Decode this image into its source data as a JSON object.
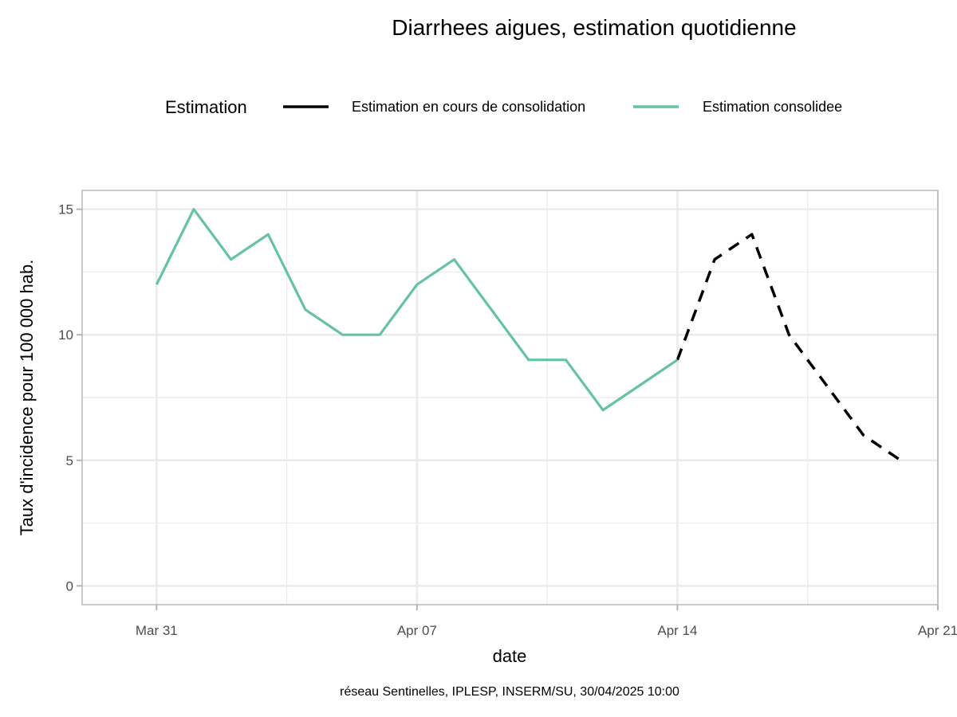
{
  "chart_data": {
    "type": "line",
    "title": "Diarrhees aigues, estimation quotidienne",
    "xlabel": "date",
    "ylabel": "Taux d'incidence pour 100 000 hab.",
    "caption": "réseau Sentinelles, IPLESP, INSERM/SU, 30/04/2025 10:00",
    "legend": {
      "title": "Estimation",
      "position": "top"
    },
    "xlim": [
      "2025-03-29",
      "2025-04-21"
    ],
    "ylim": [
      -0.75,
      15.75
    ],
    "x_ticks": [
      {
        "date": "2025-03-31",
        "label": "Mar 31"
      },
      {
        "date": "2025-04-07",
        "label": "Apr 07"
      },
      {
        "date": "2025-04-14",
        "label": "Apr 14"
      },
      {
        "date": "2025-04-21",
        "label": "Apr 21"
      }
    ],
    "y_ticks": [
      0,
      5,
      10,
      15
    ],
    "grid": true,
    "series": [
      {
        "name": "Estimation en cours de consolidation",
        "color": "#000000",
        "dash": true,
        "x": [
          "2025-04-14",
          "2025-04-15",
          "2025-04-16",
          "2025-04-17",
          "2025-04-18",
          "2025-04-19",
          "2025-04-20"
        ],
        "values": [
          9,
          13,
          14,
          10,
          8,
          6,
          5
        ]
      },
      {
        "name": "Estimation consolidee",
        "color": "#66c2a5",
        "dash": false,
        "x": [
          "2025-03-31",
          "2025-04-01",
          "2025-04-02",
          "2025-04-03",
          "2025-04-04",
          "2025-04-05",
          "2025-04-06",
          "2025-04-07",
          "2025-04-08",
          "2025-04-09",
          "2025-04-10",
          "2025-04-11",
          "2025-04-12",
          "2025-04-13",
          "2025-04-14"
        ],
        "values": [
          12,
          15,
          13,
          14,
          11,
          10,
          10,
          12,
          13,
          11,
          9,
          9,
          7,
          8,
          9
        ]
      }
    ]
  }
}
